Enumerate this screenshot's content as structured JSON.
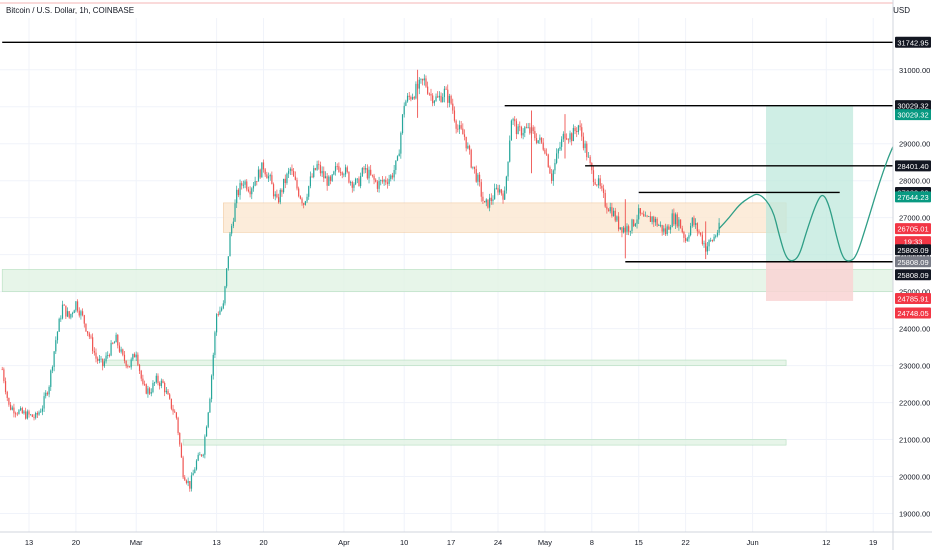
{
  "header": {
    "title": "Bitcoin / U.S. Dollar, 1h, COINBASE",
    "currency": "USD"
  },
  "colors": {
    "up": "#26a69a",
    "down": "#ef5350",
    "axis_text": "#131722",
    "resistance_line": "#000000",
    "supply_zone": "#fce9d4",
    "demand_zone": "#e3f4e6",
    "target_box": "#bfe8dc",
    "stop_box": "#f9d3d4",
    "projection": "#2e9e86"
  },
  "chart_data": {
    "type": "candlestick",
    "ylim": [
      18500,
      32400
    ],
    "x_ticks": [
      {
        "label": "13",
        "day": 0
      },
      {
        "label": "20",
        "day": 7
      },
      {
        "label": "Mar",
        "day": 16
      },
      {
        "label": "13",
        "day": 28
      },
      {
        "label": "20",
        "day": 35
      },
      {
        "label": "Apr",
        "day": 47
      },
      {
        "label": "10",
        "day": 56
      },
      {
        "label": "17",
        "day": 63
      },
      {
        "label": "24",
        "day": 70
      },
      {
        "label": "May",
        "day": 77
      },
      {
        "label": "8",
        "day": 84
      },
      {
        "label": "15",
        "day": 91
      },
      {
        "label": "22",
        "day": 98
      },
      {
        "label": "Jun",
        "day": 108
      },
      {
        "label": "12",
        "day": 119
      },
      {
        "label": "19",
        "day": 126
      }
    ],
    "y_ticks": [
      19000,
      20000,
      21000,
      22000,
      23000,
      24000,
      25000,
      26000,
      27000,
      28000,
      29000,
      30000,
      31000
    ],
    "price_path": [
      [
        -4,
        22900
      ],
      [
        -3,
        21900
      ],
      [
        -1,
        21700
      ],
      [
        1,
        21600
      ],
      [
        2,
        21900
      ],
      [
        3,
        22500
      ],
      [
        4,
        23700
      ],
      [
        5,
        24600
      ],
      [
        6,
        24300
      ],
      [
        7,
        24700
      ],
      [
        8,
        24300
      ],
      [
        9,
        23800
      ],
      [
        10,
        23200
      ],
      [
        11,
        23000
      ],
      [
        12,
        23400
      ],
      [
        13,
        23700
      ],
      [
        14,
        23200
      ],
      [
        15,
        23000
      ],
      [
        16,
        23400
      ],
      [
        17,
        22400
      ],
      [
        18,
        22300
      ],
      [
        19,
        22600
      ],
      [
        20,
        22500
      ],
      [
        21,
        22000
      ],
      [
        22,
        21600
      ],
      [
        23,
        20100
      ],
      [
        24,
        19750
      ],
      [
        25,
        20400
      ],
      [
        26,
        20700
      ],
      [
        27,
        22200
      ],
      [
        28,
        24400
      ],
      [
        29,
        24600
      ],
      [
        30,
        26500
      ],
      [
        31,
        27600
      ],
      [
        32,
        28000
      ],
      [
        33,
        27800
      ],
      [
        34,
        28100
      ],
      [
        35,
        28400
      ],
      [
        36,
        28000
      ],
      [
        37,
        27400
      ],
      [
        38,
        27900
      ],
      [
        39,
        28300
      ],
      [
        40,
        27800
      ],
      [
        41,
        27400
      ],
      [
        42,
        28000
      ],
      [
        43,
        28400
      ],
      [
        44,
        28100
      ],
      [
        45,
        27900
      ],
      [
        46,
        28400
      ],
      [
        47,
        28300
      ],
      [
        48,
        28000
      ],
      [
        49,
        27900
      ],
      [
        50,
        28300
      ],
      [
        51,
        28100
      ],
      [
        52,
        27900
      ],
      [
        53,
        28000
      ],
      [
        54,
        28100
      ],
      [
        55,
        28500
      ],
      [
        56,
        30100
      ],
      [
        57,
        30300
      ],
      [
        58,
        30500
      ],
      [
        59,
        30700
      ],
      [
        60,
        30300
      ],
      [
        61,
        30200
      ],
      [
        62,
        30400
      ],
      [
        63,
        30100
      ],
      [
        64,
        29400
      ],
      [
        65,
        29200
      ],
      [
        66,
        28500
      ],
      [
        67,
        28000
      ],
      [
        68,
        27300
      ],
      [
        69,
        27500
      ],
      [
        70,
        27800
      ],
      [
        71,
        27600
      ],
      [
        72,
        29700
      ],
      [
        73,
        29300
      ],
      [
        74,
        29400
      ],
      [
        75,
        29300
      ],
      [
        76,
        29100
      ],
      [
        77,
        28900
      ],
      [
        78,
        28100
      ],
      [
        79,
        28800
      ],
      [
        80,
        29300
      ],
      [
        81,
        29200
      ],
      [
        82,
        29500
      ],
      [
        83,
        28900
      ],
      [
        84,
        28200
      ],
      [
        85,
        27900
      ],
      [
        86,
        27400
      ],
      [
        87,
        27200
      ],
      [
        88,
        26800
      ],
      [
        89,
        26700
      ],
      [
        90,
        26800
      ],
      [
        91,
        27100
      ],
      [
        92,
        26900
      ],
      [
        93,
        27000
      ],
      [
        94,
        26800
      ],
      [
        95,
        26600
      ],
      [
        96,
        27000
      ],
      [
        97,
        26900
      ],
      [
        98,
        26400
      ],
      [
        99,
        26900
      ],
      [
        100,
        26600
      ],
      [
        101,
        26200
      ],
      [
        102,
        26400
      ],
      [
        103,
        26705
      ]
    ],
    "price_spikes": [
      {
        "day": 75,
        "high": 29900,
        "low": 28200
      },
      {
        "day": 80,
        "high": 29800,
        "low": 28600
      },
      {
        "day": 89,
        "high": 27500,
        "low": 25900
      },
      {
        "day": 101,
        "high": 26900,
        "low": 25880
      },
      {
        "day": 58,
        "high": 31000,
        "low": 29700
      }
    ],
    "horizontal_levels": [
      {
        "value": 31742.95,
        "start_day": -4,
        "end_day": 131
      },
      {
        "value": 30029.32,
        "start_day": 71,
        "end_day": 131
      },
      {
        "value": 28401.4,
        "start_day": 83,
        "end_day": 131
      },
      {
        "value": 27682.09,
        "start_day": 91,
        "end_day": 121
      },
      {
        "value": 25808.09,
        "start_day": 89,
        "end_day": 131
      }
    ],
    "zones": [
      {
        "kind": "supply",
        "from": 26600,
        "to": 27400,
        "start_day": 29,
        "end_day": 113
      },
      {
        "kind": "demand",
        "from": 25000,
        "to": 25600,
        "start_day": -4,
        "end_day": 131
      },
      {
        "kind": "demand",
        "from": 23000,
        "to": 23150,
        "start_day": 11,
        "end_day": 113
      },
      {
        "kind": "demand",
        "from": 20850,
        "to": 21000,
        "start_day": 23,
        "end_day": 113
      }
    ],
    "position": {
      "entry": 25808.09,
      "target": 30029.32,
      "stop": 24748.05,
      "start_day": 110,
      "end_day": 123
    },
    "projection": [
      [
        103,
        26705
      ],
      [
        104.5,
        27000
      ],
      [
        106,
        27350
      ],
      [
        107.5,
        27550
      ],
      [
        109,
        27680
      ],
      [
        111,
        27250
      ],
      [
        112,
        26500
      ],
      [
        113,
        25900
      ],
      [
        114,
        25808
      ],
      [
        115,
        25980
      ],
      [
        116,
        26600
      ],
      [
        117.5,
        27400
      ],
      [
        118.5,
        27680
      ],
      [
        119.5,
        27300
      ],
      [
        120.5,
        26500
      ],
      [
        121.5,
        25880
      ],
      [
        122.5,
        25808
      ],
      [
        123.5,
        25950
      ],
      [
        125,
        26800
      ],
      [
        127,
        28000
      ],
      [
        129,
        29000
      ],
      [
        131,
        29500
      ]
    ],
    "price_labels": [
      {
        "value": 31742.95,
        "text": "31742.95",
        "kind": "line"
      },
      {
        "value": 30029.32,
        "text": "30029.32",
        "kind": "line"
      },
      {
        "value": 30029.32,
        "text": "30029.32",
        "kind": "target",
        "offset": 9
      },
      {
        "value": 28401.4,
        "text": "28401.40",
        "kind": "line"
      },
      {
        "value": 27682.09,
        "text": "27682.09",
        "kind": "line"
      },
      {
        "value": 27644.23,
        "text": "27644.23",
        "kind": "target",
        "offset": 3
      },
      {
        "value": 26705.01,
        "text": "26705.01",
        "kind": "price"
      },
      {
        "value": 26705.01,
        "text": "19:33",
        "kind": "price",
        "offset": 13
      },
      {
        "value": 25808.09,
        "text": "25808.09",
        "kind": "line",
        "offset": -12
      },
      {
        "value": 25808.09,
        "text": "25808.09",
        "kind": "grey"
      },
      {
        "value": 25808.09,
        "text": "25808.09",
        "kind": "line",
        "offset": 13
      },
      {
        "value": 24785.91,
        "text": "24785.91",
        "kind": "price",
        "offset": -1
      },
      {
        "value": 24748.05,
        "text": "24748.05",
        "kind": "price",
        "offset": 12
      }
    ]
  }
}
